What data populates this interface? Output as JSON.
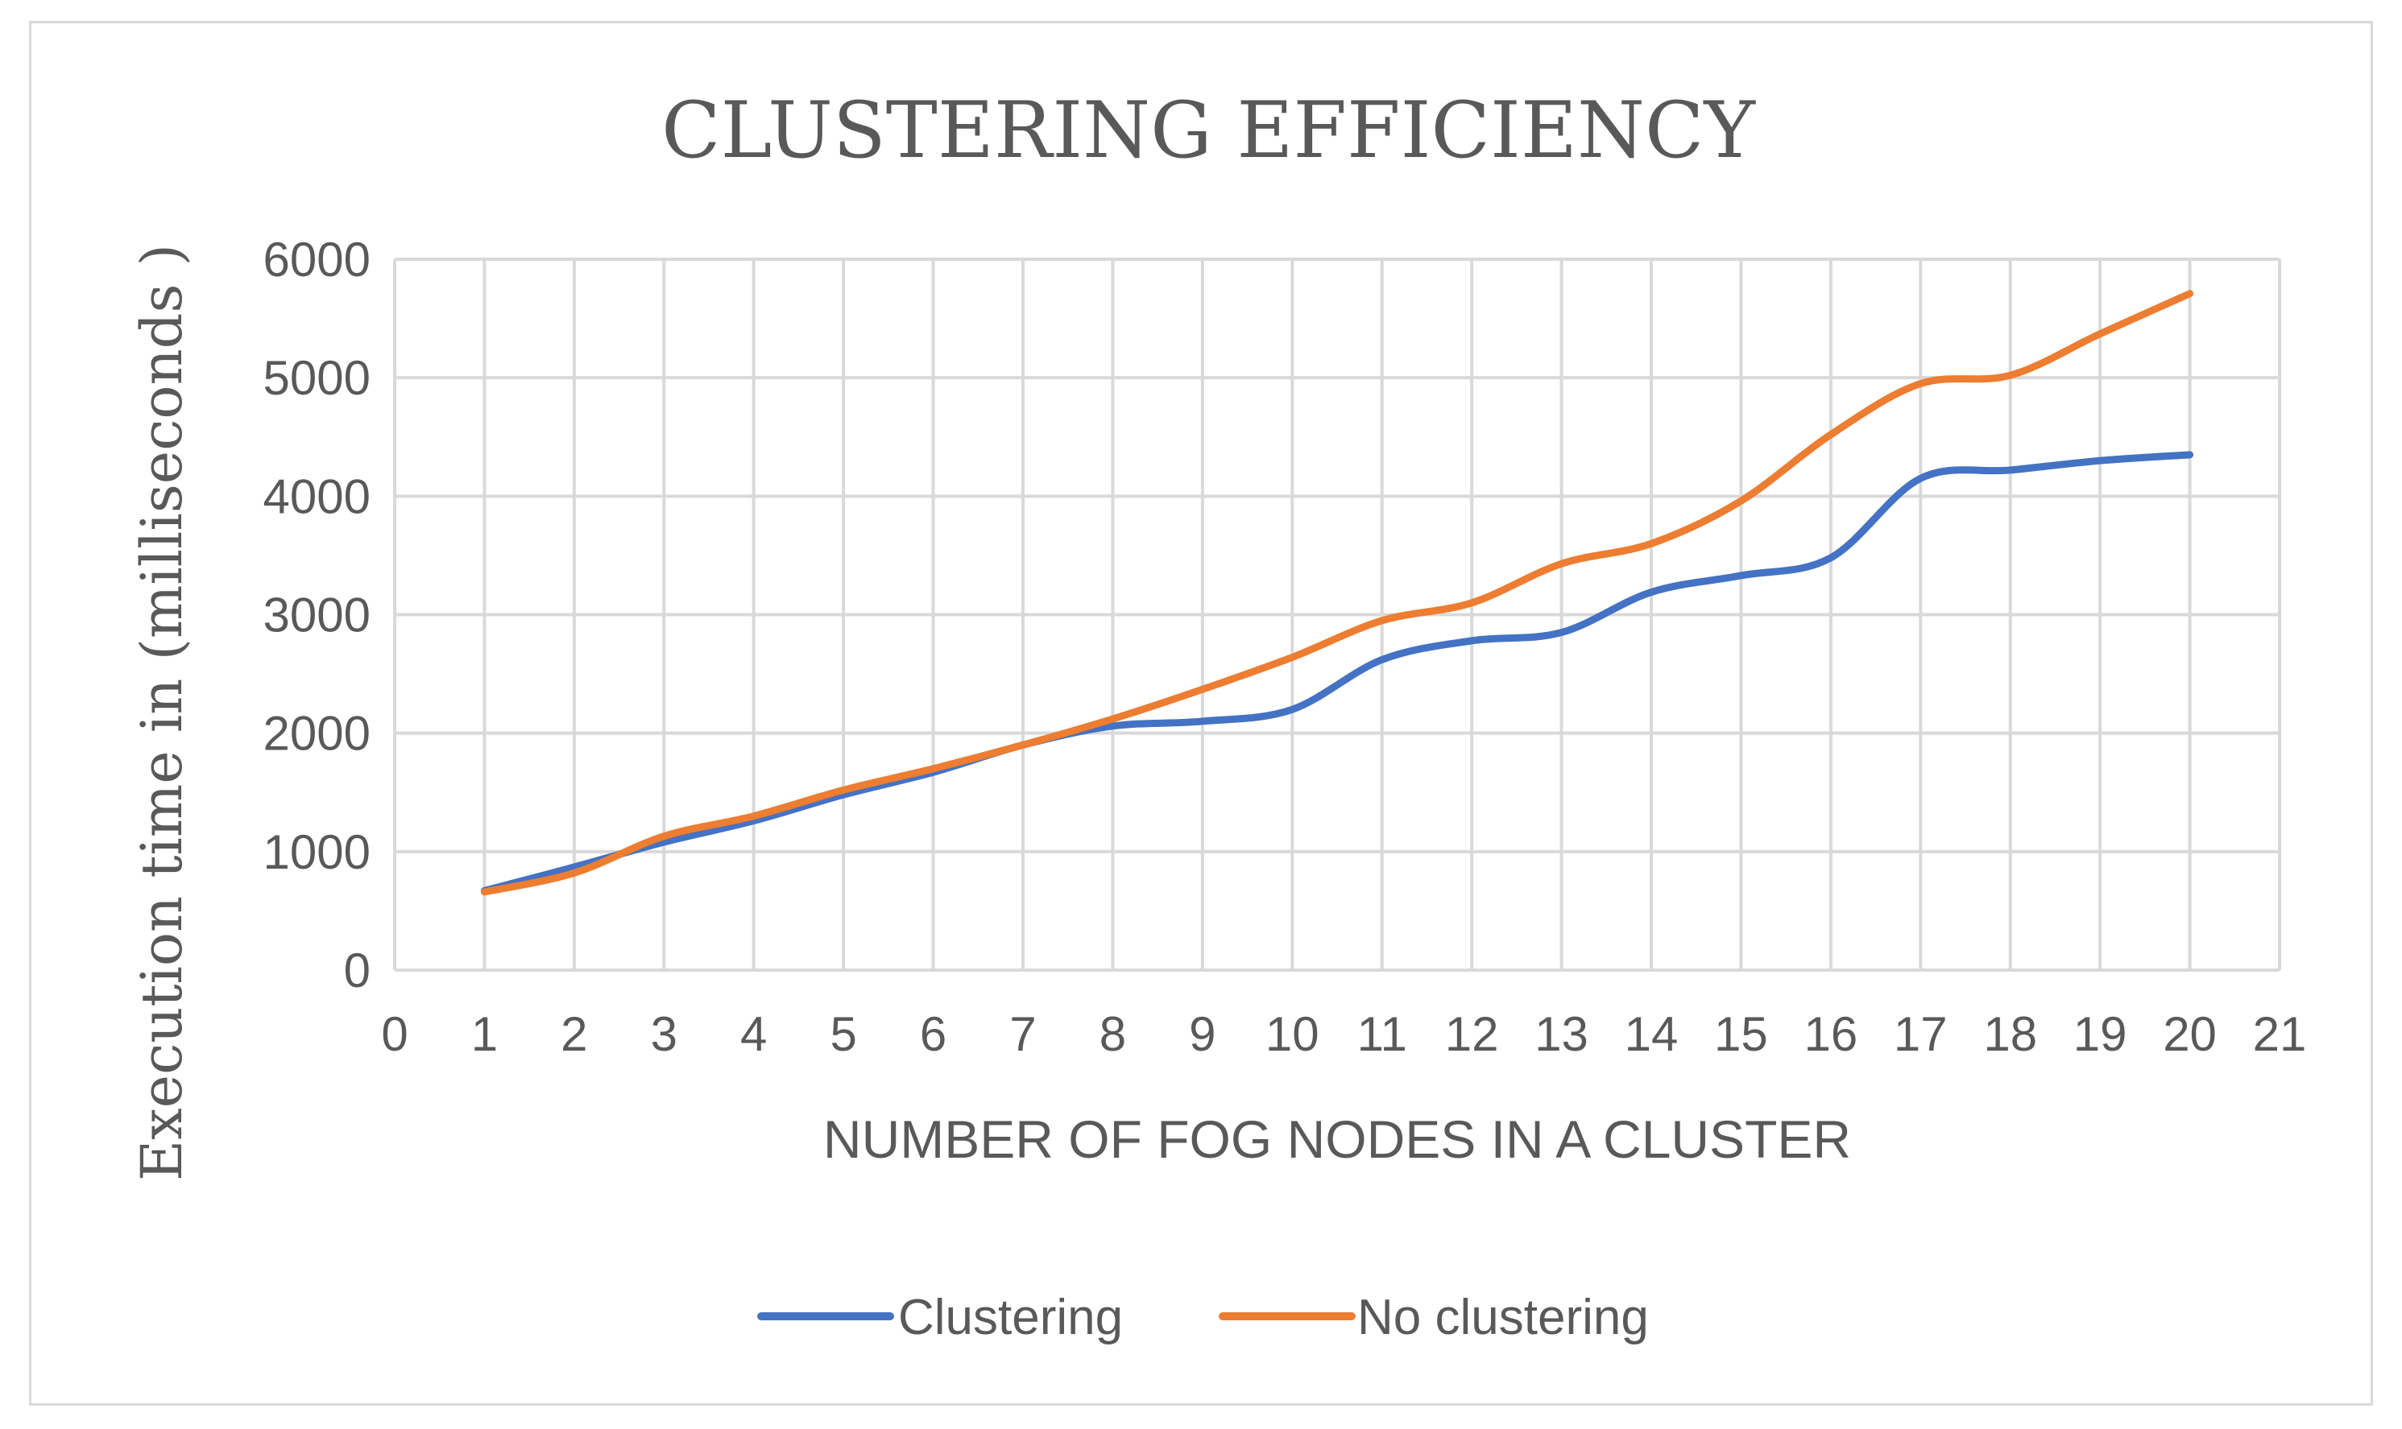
{
  "chart_data": {
    "type": "line",
    "title": "CLUSTERING EFFICIENCY",
    "xlabel": "NUMBER OF FOG NODES IN A CLUSTER",
    "ylabel": "Execution time in (milliseconds )",
    "xlim": [
      0,
      21
    ],
    "ylim": [
      0,
      6000
    ],
    "x_ticks": [
      0,
      1,
      2,
      3,
      4,
      5,
      6,
      7,
      8,
      9,
      10,
      11,
      12,
      13,
      14,
      15,
      16,
      17,
      18,
      19,
      20,
      21
    ],
    "y_ticks": [
      0,
      1000,
      2000,
      3000,
      4000,
      5000,
      6000
    ],
    "grid": true,
    "legend_position": "bottom",
    "x": [
      1,
      2,
      3,
      4,
      5,
      6,
      7,
      8,
      9,
      10,
      11,
      12,
      13,
      14,
      15,
      16,
      17,
      18,
      19,
      20
    ],
    "series": [
      {
        "name": "Clustering",
        "color": "#4472C4",
        "values": [
          670,
          870,
          1080,
          1260,
          1480,
          1670,
          1900,
          2060,
          2100,
          2200,
          2620,
          2780,
          2850,
          3190,
          3330,
          3480,
          4150,
          4220,
          4300,
          4350
        ]
      },
      {
        "name": "No clustering",
        "color": "#ED7D31",
        "values": [
          660,
          820,
          1130,
          1300,
          1520,
          1700,
          1900,
          2120,
          2370,
          2640,
          2950,
          3100,
          3430,
          3600,
          3960,
          4520,
          4950,
          5020,
          5370,
          5710
        ]
      }
    ]
  }
}
